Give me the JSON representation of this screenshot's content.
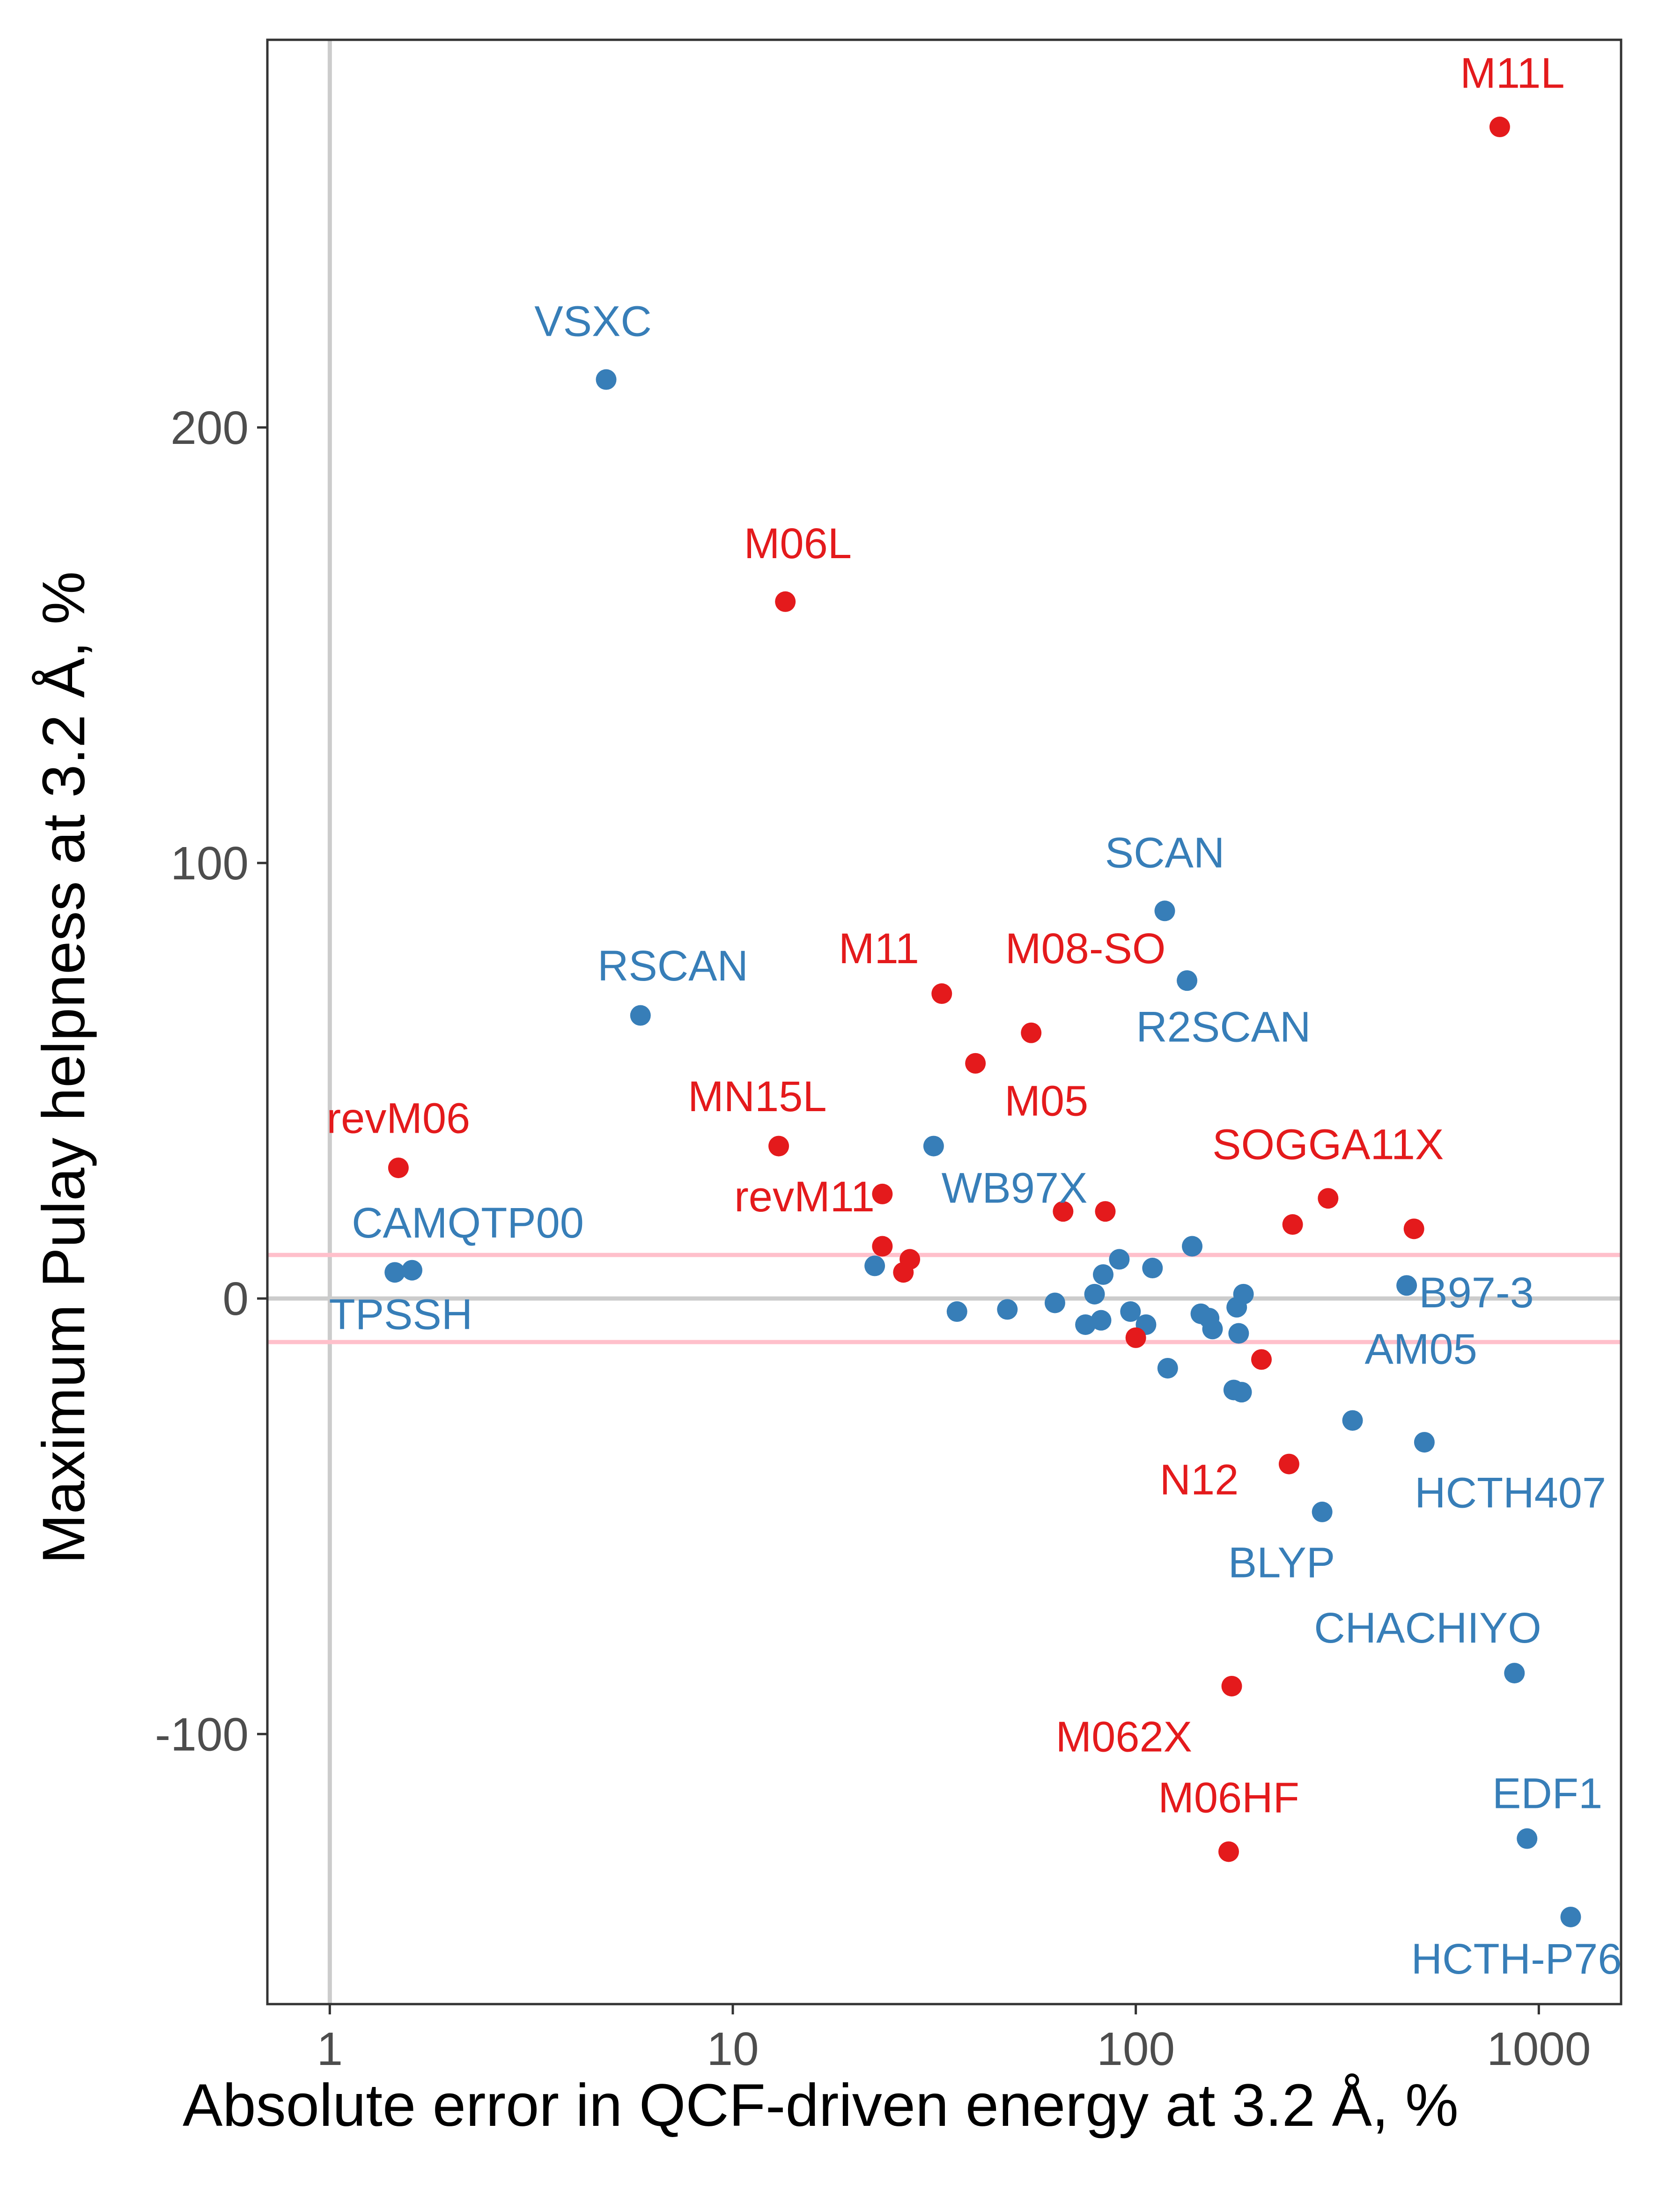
{
  "colors": {
    "red": "#e41a1c",
    "blue": "#377eb8",
    "refline": "#cccccc",
    "band": "#ffc0cb",
    "frame": "#333333"
  },
  "chart_data": {
    "type": "scatter",
    "xlabel": "Absolute error in QCF-driven energy at 3.2 Å, %",
    "ylabel": "Maximum Pulay helpness at 3.2 Å, %",
    "x_scale": "log10",
    "xlim": [
      0.7,
      1600
    ],
    "ylim": [
      -162,
      289
    ],
    "x_ticks": [
      1,
      10,
      100,
      1000
    ],
    "x_tick_labels": [
      "1",
      "10",
      "100",
      "1000"
    ],
    "y_ticks": [
      -100,
      0,
      100,
      200
    ],
    "y_tick_labels": [
      "-100",
      "0",
      "100",
      "200"
    ],
    "reference_lines": {
      "vertical_x": 1,
      "horizontal_y": 0,
      "band_y": [
        -10,
        10
      ]
    },
    "grid": false,
    "legend": "none",
    "points": [
      {
        "x": 800,
        "y": 269,
        "color": "red",
        "label": "M11L",
        "lx": 860,
        "ly": 278,
        "la": "middle"
      },
      {
        "x": 4.85,
        "y": 211,
        "color": "blue",
        "label": "VSXC",
        "lx": 4.5,
        "ly": 221,
        "la": "middle"
      },
      {
        "x": 13.5,
        "y": 160,
        "color": "red",
        "label": "M06L",
        "lx": 14.5,
        "ly": 170,
        "la": "middle"
      },
      {
        "x": 118,
        "y": 89,
        "color": "blue",
        "label": "SCAN",
        "lx": 118,
        "ly": 99,
        "la": "middle"
      },
      {
        "x": 134,
        "y": 73,
        "color": "blue",
        "label": "R2SCAN",
        "lx": 165,
        "ly": 59,
        "la": "middle"
      },
      {
        "x": 5.9,
        "y": 65,
        "color": "blue",
        "label": "RSCAN",
        "lx": 7.1,
        "ly": 73,
        "la": "middle"
      },
      {
        "x": 33,
        "y": 70,
        "color": "red",
        "label": "M11",
        "lx": 29,
        "ly": 77,
        "la": "end"
      },
      {
        "x": 55,
        "y": 61,
        "color": "red",
        "label": "M08-SO",
        "lx": 75,
        "ly": 77,
        "la": "middle"
      },
      {
        "x": 40,
        "y": 54,
        "color": "red",
        "label": "M05",
        "lx": 60,
        "ly": 42,
        "la": "middle"
      },
      {
        "x": 13,
        "y": 35,
        "color": "red",
        "label": "MN15L",
        "lx": 11.5,
        "ly": 43,
        "la": "middle"
      },
      {
        "x": 31.5,
        "y": 35,
        "color": "blue",
        "label": "WB97X",
        "lx": 50,
        "ly": 22,
        "la": "middle"
      },
      {
        "x": 1.48,
        "y": 30,
        "color": "red",
        "label": "revM06",
        "lx": 1.48,
        "ly": 38,
        "la": "middle"
      },
      {
        "x": 23.5,
        "y": 24,
        "color": "red",
        "label": "revM11",
        "lx": 22.5,
        "ly": 20,
        "la": "end"
      },
      {
        "x": 300,
        "y": 23,
        "color": "red",
        "label": "SOGGA11X",
        "lx": 300,
        "ly": 32,
        "la": "middle"
      },
      {
        "x": 66,
        "y": 20,
        "color": "red"
      },
      {
        "x": 84,
        "y": 20,
        "color": "red"
      },
      {
        "x": 245,
        "y": 17,
        "color": "red"
      },
      {
        "x": 490,
        "y": 16,
        "color": "red"
      },
      {
        "x": 23.5,
        "y": 12,
        "color": "red"
      },
      {
        "x": 27.5,
        "y": 9,
        "color": "red"
      },
      {
        "x": 26.5,
        "y": 6,
        "color": "red"
      },
      {
        "x": 138,
        "y": 12,
        "color": "blue"
      },
      {
        "x": 91,
        "y": 9,
        "color": "blue"
      },
      {
        "x": 22.5,
        "y": 7.5,
        "color": "blue"
      },
      {
        "x": 110,
        "y": 7,
        "color": "blue"
      },
      {
        "x": 1.6,
        "y": 6.5,
        "color": "blue",
        "label": "CAMQTP00",
        "lx": 2.2,
        "ly": 14,
        "la": "middle"
      },
      {
        "x": 1.45,
        "y": 6,
        "color": "blue"
      },
      {
        "x": 83,
        "y": 5.5,
        "color": "blue"
      },
      {
        "x": 470,
        "y": 3,
        "color": "blue",
        "label": "B97-3",
        "lx": 700,
        "ly": -2,
        "la": "middle"
      },
      {
        "x": 185,
        "y": 1,
        "color": "blue"
      },
      {
        "x": 79,
        "y": 1,
        "color": "blue"
      },
      {
        "x": 178,
        "y": -2,
        "color": "blue"
      },
      {
        "x": 63,
        "y": -1,
        "color": "blue"
      },
      {
        "x": 36,
        "y": -3,
        "color": "blue",
        "label": "TPSSH",
        "lx": 1.5,
        "ly": -7,
        "la": "middle"
      },
      {
        "x": 48,
        "y": -2.5,
        "color": "blue"
      },
      {
        "x": 97,
        "y": -3,
        "color": "blue"
      },
      {
        "x": 145,
        "y": -3.5,
        "color": "blue"
      },
      {
        "x": 152,
        "y": -4.5,
        "color": "blue"
      },
      {
        "x": 82,
        "y": -5,
        "color": "blue"
      },
      {
        "x": 75,
        "y": -6,
        "color": "blue"
      },
      {
        "x": 106,
        "y": -6,
        "color": "blue"
      },
      {
        "x": 155,
        "y": -7,
        "color": "blue"
      },
      {
        "x": 180,
        "y": -8,
        "color": "blue"
      },
      {
        "x": 100,
        "y": -9,
        "color": "red"
      },
      {
        "x": 205,
        "y": -14,
        "color": "red"
      },
      {
        "x": 120,
        "y": -16,
        "color": "blue"
      },
      {
        "x": 175,
        "y": -21,
        "color": "blue"
      },
      {
        "x": 183,
        "y": -21.5,
        "color": "blue"
      },
      {
        "x": 345,
        "y": -28,
        "color": "blue",
        "label": "AM05",
        "lx": 510,
        "ly": -15,
        "la": "middle"
      },
      {
        "x": 520,
        "y": -33,
        "color": "blue",
        "label": "HCTH407",
        "lx": 850,
        "ly": -48,
        "la": "middle"
      },
      {
        "x": 240,
        "y": -38,
        "color": "red",
        "label": "N12",
        "lx": 180,
        "ly": -45,
        "la": "end"
      },
      {
        "x": 290,
        "y": -49,
        "color": "blue",
        "label": "BLYP",
        "lx": 230,
        "ly": -64,
        "la": "middle"
      },
      {
        "x": 870,
        "y": -86,
        "color": "blue",
        "label": "CHACHIYO",
        "lx": 530,
        "ly": -79,
        "la": "middle"
      },
      {
        "x": 173,
        "y": -89,
        "color": "red",
        "label": "M062X",
        "lx": 138,
        "ly": -104,
        "la": "end"
      },
      {
        "x": 935,
        "y": -124,
        "color": "blue",
        "label": "EDF1",
        "lx": 1050,
        "ly": -117,
        "la": "middle"
      },
      {
        "x": 170,
        "y": -127,
        "color": "red",
        "label": "M06HF",
        "lx": 170,
        "ly": -118,
        "la": "middle"
      },
      {
        "x": 1200,
        "y": -142,
        "color": "blue",
        "label": "HCTH-P76",
        "lx": 880,
        "ly": -155,
        "la": "middle"
      }
    ]
  }
}
